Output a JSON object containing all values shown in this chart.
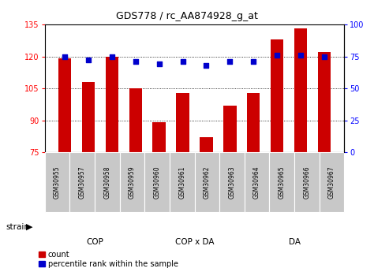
{
  "title": "GDS778 / rc_AA874928_g_at",
  "samples": [
    "GSM30955",
    "GSM30957",
    "GSM30958",
    "GSM30959",
    "GSM30960",
    "GSM30961",
    "GSM30962",
    "GSM30963",
    "GSM30964",
    "GSM30965",
    "GSM30966",
    "GSM30967"
  ],
  "bar_values": [
    119,
    108,
    120,
    105,
    89,
    103,
    82,
    97,
    103,
    128,
    133,
    122
  ],
  "percentile_values": [
    75,
    72,
    75,
    71,
    69,
    71,
    68,
    71,
    71,
    76,
    76,
    75
  ],
  "groups": [
    {
      "label": "COP",
      "start": 0,
      "end": 4,
      "color": "#CCFFCC"
    },
    {
      "label": "COP x DA",
      "start": 4,
      "end": 8,
      "color": "#CCFFCC"
    },
    {
      "label": "DA",
      "start": 8,
      "end": 12,
      "color": "#44DD44"
    }
  ],
  "ylim_left": [
    75,
    135
  ],
  "ylim_right": [
    0,
    100
  ],
  "yticks_left": [
    75,
    90,
    105,
    120,
    135
  ],
  "yticks_right": [
    0,
    25,
    50,
    75,
    100
  ],
  "bar_color": "#CC0000",
  "dot_color": "#0000CC",
  "plot_bg": "#FFFFFF",
  "tick_bg": "#C8C8C8",
  "xlabel": "strain",
  "legend_count": "count",
  "legend_pct": "percentile rank within the sample"
}
